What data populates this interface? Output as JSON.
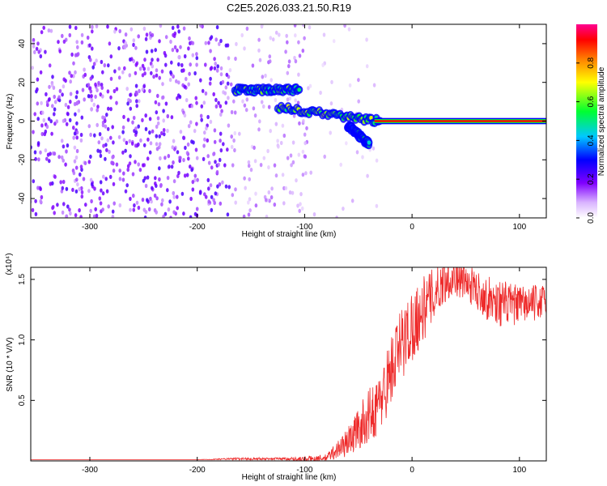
{
  "title": "C2E5.2026.033.21.50.R19",
  "colors": {
    "snr_line": "#ee2a2a",
    "spectrogram_noise": "#7a2cf0",
    "spectrogram_peak": "#ff3030"
  },
  "chart_data": [
    {
      "type": "heatmap",
      "xlabel": "Height of straight line (km)",
      "ylabel": "Frequency (Hz)",
      "xlim": [
        -355,
        125
      ],
      "ylim": [
        -50,
        50
      ],
      "x_ticks": [
        -300,
        -200,
        -100,
        0,
        100
      ],
      "y_ticks": [
        -40,
        -20,
        0,
        20,
        40
      ],
      "grid": false,
      "colorbar": {
        "label": "Normalized spectral amplitude",
        "range": [
          0,
          1
        ],
        "ticks": [
          0.0,
          0.2,
          0.4,
          0.6,
          0.8
        ],
        "tick_labels": [
          "0.0",
          "0.2",
          "0.4",
          "0.6",
          "0.8"
        ]
      },
      "features": [
        {
          "description_x": [
            -165,
            -105
          ],
          "frequency_hz": 16,
          "amplitude": 0.45
        },
        {
          "description_x": [
            -125,
            -30
          ],
          "frequency_hz_start": 7,
          "frequency_hz_end": 0,
          "amplitude": 0.5
        },
        {
          "description_x": [
            -60,
            -40
          ],
          "frequency_hz_start": -2,
          "frequency_hz_end": -12,
          "amplitude": 0.4
        },
        {
          "description_x": [
            -35,
            125
          ],
          "frequency_hz": 0,
          "amplitude": 1.0
        }
      ]
    },
    {
      "type": "line",
      "xlabel": "Height of straight line (km)",
      "ylabel": "SNR (10 * V/V)",
      "y_multiplier": "(x10⁴)",
      "xlim": [
        -355,
        125
      ],
      "ylim": [
        0,
        1.6
      ],
      "x_ticks": [
        -300,
        -200,
        -100,
        0,
        100
      ],
      "y_ticks": [
        0.5,
        1.0,
        1.5
      ],
      "y_tick_labels": [
        "0.5",
        "1.0",
        "1.5"
      ],
      "grid": false,
      "series": [
        {
          "x": [
            -355,
            -300,
            -200,
            -160,
            -120,
            -100,
            -80,
            -60,
            -50,
            -40,
            -30,
            -20,
            -10,
            0,
            10,
            20,
            30,
            40,
            50,
            60,
            70,
            80,
            90,
            100,
            110,
            125
          ],
          "y": [
            0.01,
            0.01,
            0.01,
            0.02,
            0.02,
            0.02,
            0.03,
            0.18,
            0.3,
            0.42,
            0.52,
            0.8,
            1.02,
            1.18,
            1.3,
            1.42,
            1.52,
            1.55,
            1.5,
            1.45,
            1.38,
            1.35,
            1.33,
            1.32,
            1.33,
            1.35
          ],
          "noise_amplitude": [
            0,
            0,
            0,
            0.01,
            0.01,
            0.02,
            0.03,
            0.12,
            0.18,
            0.22,
            0.25,
            0.3,
            0.32,
            0.3,
            0.28,
            0.22,
            0.18,
            0.15,
            0.15,
            0.16,
            0.18,
            0.2,
            0.18,
            0.16,
            0.15,
            0.14
          ]
        }
      ]
    }
  ]
}
